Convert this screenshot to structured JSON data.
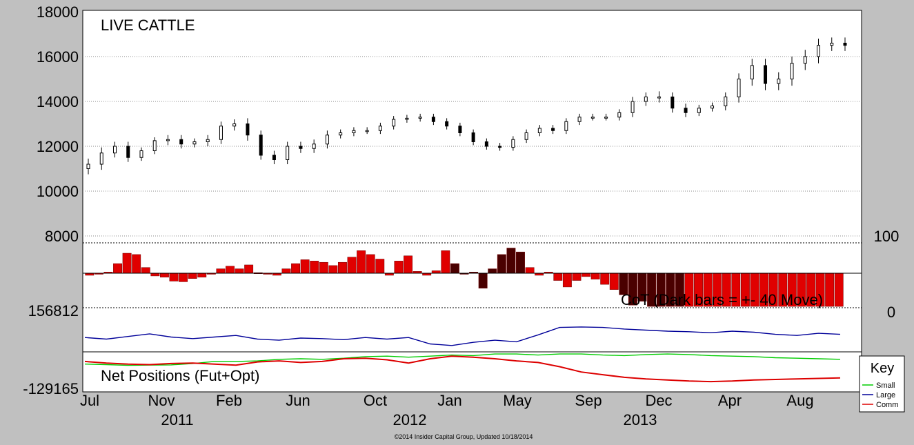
{
  "chart_data": [
    {
      "type": "candlestick",
      "title": "LIVE CATTLE",
      "y_ticks": [
        "18000",
        "16000",
        "14000",
        "12000",
        "10000",
        "8000"
      ],
      "ylim": [
        6000,
        18000
      ],
      "grid": true,
      "x_dates": [
        "2011-07-01",
        "2011-07-22",
        "2011-08-12",
        "2011-09-02",
        "2011-09-23",
        "2011-10-14",
        "2011-11-04",
        "2011-11-25",
        "2011-12-16",
        "2012-01-06",
        "2012-01-27",
        "2012-02-17",
        "2012-03-09",
        "2012-03-30",
        "2012-04-20",
        "2012-05-11",
        "2012-06-01",
        "2012-06-22",
        "2012-07-13",
        "2012-08-03",
        "2012-08-24",
        "2012-09-14",
        "2012-10-05",
        "2012-10-26",
        "2012-11-16",
        "2012-12-07",
        "2012-12-28",
        "2013-01-18",
        "2013-02-08",
        "2013-03-01",
        "2013-03-22",
        "2013-04-12",
        "2013-05-03",
        "2013-05-24",
        "2013-06-14",
        "2013-07-05",
        "2013-07-26",
        "2013-08-16",
        "2013-09-06",
        "2013-09-27",
        "2013-10-18",
        "2013-11-08",
        "2013-11-29",
        "2013-12-20",
        "2014-01-10",
        "2014-01-31",
        "2014-02-21",
        "2014-03-14",
        "2014-04-04",
        "2014-04-25",
        "2014-05-16",
        "2014-06-06",
        "2014-06-27",
        "2014-07-18",
        "2014-08-08",
        "2014-08-29",
        "2014-09-19",
        "2014-10-10"
      ],
      "close": [
        11200,
        11700,
        12000,
        11500,
        11800,
        12250,
        12300,
        12100,
        12200,
        12300,
        12900,
        13000,
        12500,
        11600,
        11400,
        12000,
        11900,
        12100,
        12500,
        12600,
        12700,
        12700,
        12900,
        13200,
        13250,
        13300,
        13100,
        12900,
        12600,
        12200,
        12000,
        11950,
        12300,
        12600,
        12800,
        12700,
        13100,
        13300,
        13300,
        13300,
        13500,
        14000,
        14200,
        14200,
        13700,
        13500,
        13700,
        13800,
        14200,
        15000,
        15600,
        14800,
        15000,
        15700,
        16000,
        16500,
        16600,
        16500
      ],
      "range": [
        500,
        500,
        400,
        400,
        300,
        300,
        400,
        400,
        300,
        400,
        400,
        400,
        500,
        400,
        400,
        400,
        400,
        400,
        400,
        300,
        300,
        300,
        300,
        300,
        300,
        300,
        300,
        300,
        300,
        300,
        300,
        300,
        300,
        300,
        300,
        300,
        300,
        300,
        300,
        300,
        300,
        400,
        400,
        500,
        400,
        400,
        300,
        300,
        400,
        500,
        600,
        600,
        600,
        600,
        600,
        600,
        500,
        500
      ]
    },
    {
      "type": "bar",
      "title": "CoT (Dark bars = +- 40 Move)",
      "right_ticks": [
        "100",
        "0"
      ],
      "ylim": [
        0,
        100
      ],
      "values": [
        50,
        52,
        55,
        68,
        84,
        82,
        62,
        49,
        47,
        41,
        40,
        45,
        47,
        52,
        60,
        64,
        60,
        66,
        54,
        52,
        50,
        60,
        68,
        74,
        72,
        70,
        65,
        70,
        78,
        88,
        82,
        75,
        50,
        72,
        80,
        56,
        50,
        57,
        88,
        68,
        52,
        55,
        30,
        60,
        82,
        92,
        86,
        62,
        50,
        55,
        42,
        32,
        42,
        48,
        44,
        36,
        28,
        20,
        4,
        10,
        2,
        2,
        2,
        2,
        2,
        2,
        2,
        2,
        2,
        2,
        2,
        2,
        2,
        2,
        2,
        2,
        2,
        2,
        2,
        2,
        2
      ],
      "dark": [
        false,
        false,
        false,
        false,
        false,
        false,
        false,
        false,
        false,
        false,
        false,
        false,
        false,
        false,
        false,
        false,
        false,
        false,
        false,
        false,
        false,
        false,
        false,
        false,
        false,
        false,
        false,
        false,
        false,
        false,
        false,
        false,
        false,
        false,
        false,
        false,
        false,
        false,
        false,
        true,
        true,
        true,
        true,
        true,
        true,
        true,
        true,
        false,
        false,
        false,
        false,
        false,
        false,
        false,
        false,
        false,
        false,
        true,
        true,
        true,
        true,
        true,
        true,
        true,
        false,
        false,
        false,
        false,
        false,
        false,
        false,
        false,
        false,
        false,
        false,
        false,
        false,
        false,
        false,
        false,
        false
      ]
    },
    {
      "type": "line",
      "title": "Net Positions (Fut+Opt)",
      "y_ticks": [
        "156812",
        "-129165"
      ],
      "ylim": [
        -129165,
        156812
      ],
      "series": [
        {
          "name": "Small",
          "color": "#00cc00",
          "values": [
            -40000,
            -42000,
            -45000,
            -44000,
            -43000,
            -38000,
            -30000,
            -30000,
            -28000,
            -22000,
            -20000,
            -22000,
            -18000,
            -12000,
            -10000,
            -14000,
            -10000,
            -6000,
            -8000,
            -2000,
            -2000,
            -6000,
            -2000,
            -2000,
            -6000,
            -8000,
            -4000,
            -2000,
            -4000,
            -8000,
            -10000,
            -12000,
            -16000,
            -18000,
            -20000,
            -22000
          ]
        },
        {
          "name": "Large",
          "color": "#000099",
          "values": [
            60000,
            54000,
            64000,
            74000,
            62000,
            56000,
            62000,
            68000,
            54000,
            50000,
            58000,
            56000,
            52000,
            60000,
            54000,
            60000,
            36000,
            30000,
            42000,
            50000,
            44000,
            70000,
            98000,
            100000,
            98000,
            92000,
            88000,
            84000,
            82000,
            78000,
            84000,
            80000,
            72000,
            68000,
            76000,
            72000
          ]
        },
        {
          "name": "Comm",
          "color": "#dd0000",
          "values": [
            -30000,
            -36000,
            -40000,
            -42000,
            -38000,
            -36000,
            -40000,
            -44000,
            -32000,
            -28000,
            -34000,
            -30000,
            -20000,
            -18000,
            -24000,
            -36000,
            -20000,
            -10000,
            -14000,
            -20000,
            -28000,
            -34000,
            -50000,
            -70000,
            -80000,
            -90000,
            -96000,
            -100000,
            -104000,
            -106000,
            -104000,
            -100000,
            -98000,
            -96000,
            -94000,
            -92000
          ]
        }
      ]
    }
  ],
  "x_axis": {
    "months": [
      "Jul",
      "Nov",
      "Feb",
      "Jun",
      "Oct",
      "Jan",
      "May",
      "Sep",
      "Dec",
      "Apr",
      "Aug"
    ],
    "years": [
      "2011",
      "2012",
      "2013"
    ]
  },
  "legend": {
    "title": "Key",
    "items": [
      {
        "label": "Small",
        "color": "#00cc00"
      },
      {
        "label": "Large",
        "color": "#000099"
      },
      {
        "label": "Comm",
        "color": "#dd0000"
      }
    ]
  },
  "footer": "©2014 Insider Capital Group, Updated 10/18/2014"
}
